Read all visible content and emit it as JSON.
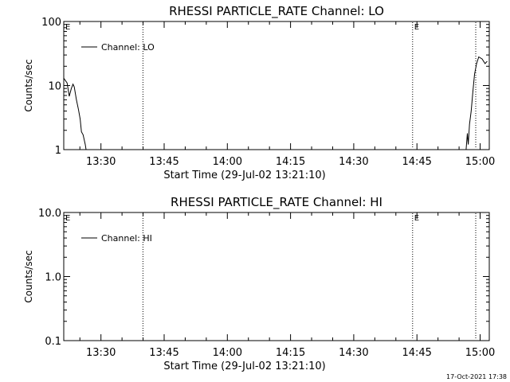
{
  "footer": {
    "timestamp": "17-Oct-2021 17:38"
  },
  "chart_data": [
    {
      "type": "line",
      "title": "RHESSI PARTICLE_RATE Channel: LO",
      "xlabel": "Start Time (29-Jul-02 13:21:10)",
      "ylabel": "Counts/sec",
      "yscale": "log",
      "ylim": [
        1,
        100
      ],
      "xlim_minutes": [
        0,
        101
      ],
      "xtick_minutes": [
        8.83,
        23.83,
        38.83,
        53.83,
        68.83,
        83.83,
        98.83
      ],
      "xtick_labels": [
        "13:30",
        "13:45",
        "14:00",
        "14:15",
        "14:30",
        "14:45",
        "15:00"
      ],
      "ytick_values": [
        1,
        10,
        100
      ],
      "ytick_labels": [
        "1",
        "10",
        "100"
      ],
      "legend": {
        "placement": "top-left",
        "entries": [
          "Channel: LO"
        ]
      },
      "vlines": [
        {
          "x": 18.8,
          "label": ""
        },
        {
          "x": 82.8,
          "label": "E"
        },
        {
          "x": 101,
          "label": ""
        }
      ],
      "left_marker": "E",
      "series": [
        {
          "name": "Channel: LO",
          "segments": [
            [
              [
                0,
                13
              ],
              [
                0.8,
                11
              ],
              [
                1.3,
                6.8
              ],
              [
                1.8,
                9
              ],
              [
                2.2,
                10.5
              ],
              [
                2.5,
                9.5
              ],
              [
                3,
                6
              ],
              [
                3.5,
                4.2
              ],
              [
                3.9,
                3
              ],
              [
                4.2,
                1.9
              ],
              [
                4.6,
                1.7
              ],
              [
                5.1,
                1.2
              ],
              [
                5.3,
                0.9
              ]
            ],
            [
              [
                95.5,
                0.9
              ],
              [
                95.8,
                1.8
              ],
              [
                96,
                1.2
              ],
              [
                96.3,
                2.5
              ],
              [
                96.7,
                4
              ],
              [
                97.1,
                8
              ],
              [
                97.5,
                15
              ],
              [
                98,
                22
              ],
              [
                98.5,
                28
              ],
              [
                99.3,
                26
              ],
              [
                100,
                22
              ],
              [
                100.5,
                24
              ]
            ]
          ]
        }
      ]
    },
    {
      "type": "line",
      "title": "RHESSI PARTICLE_RATE Channel: HI",
      "xlabel": "Start Time (29-Jul-02 13:21:10)",
      "ylabel": "Counts/sec",
      "yscale": "log",
      "ylim": [
        0.1,
        10
      ],
      "xlim_minutes": [
        0,
        101
      ],
      "xtick_minutes": [
        8.83,
        23.83,
        38.83,
        53.83,
        68.83,
        83.83,
        98.83
      ],
      "xtick_labels": [
        "13:30",
        "13:45",
        "14:00",
        "14:15",
        "14:30",
        "14:45",
        "15:00"
      ],
      "ytick_values": [
        0.1,
        1,
        10
      ],
      "ytick_labels": [
        "0.1",
        "1.0",
        "10.0"
      ],
      "legend": {
        "placement": "top-left",
        "entries": [
          "Channel: HI"
        ]
      },
      "vlines": [
        {
          "x": 18.8,
          "label": ""
        },
        {
          "x": 82.8,
          "label": "E"
        },
        {
          "x": 101,
          "label": ""
        }
      ],
      "left_marker": "E",
      "series": [
        {
          "name": "Channel: HI",
          "segments": []
        }
      ]
    }
  ]
}
